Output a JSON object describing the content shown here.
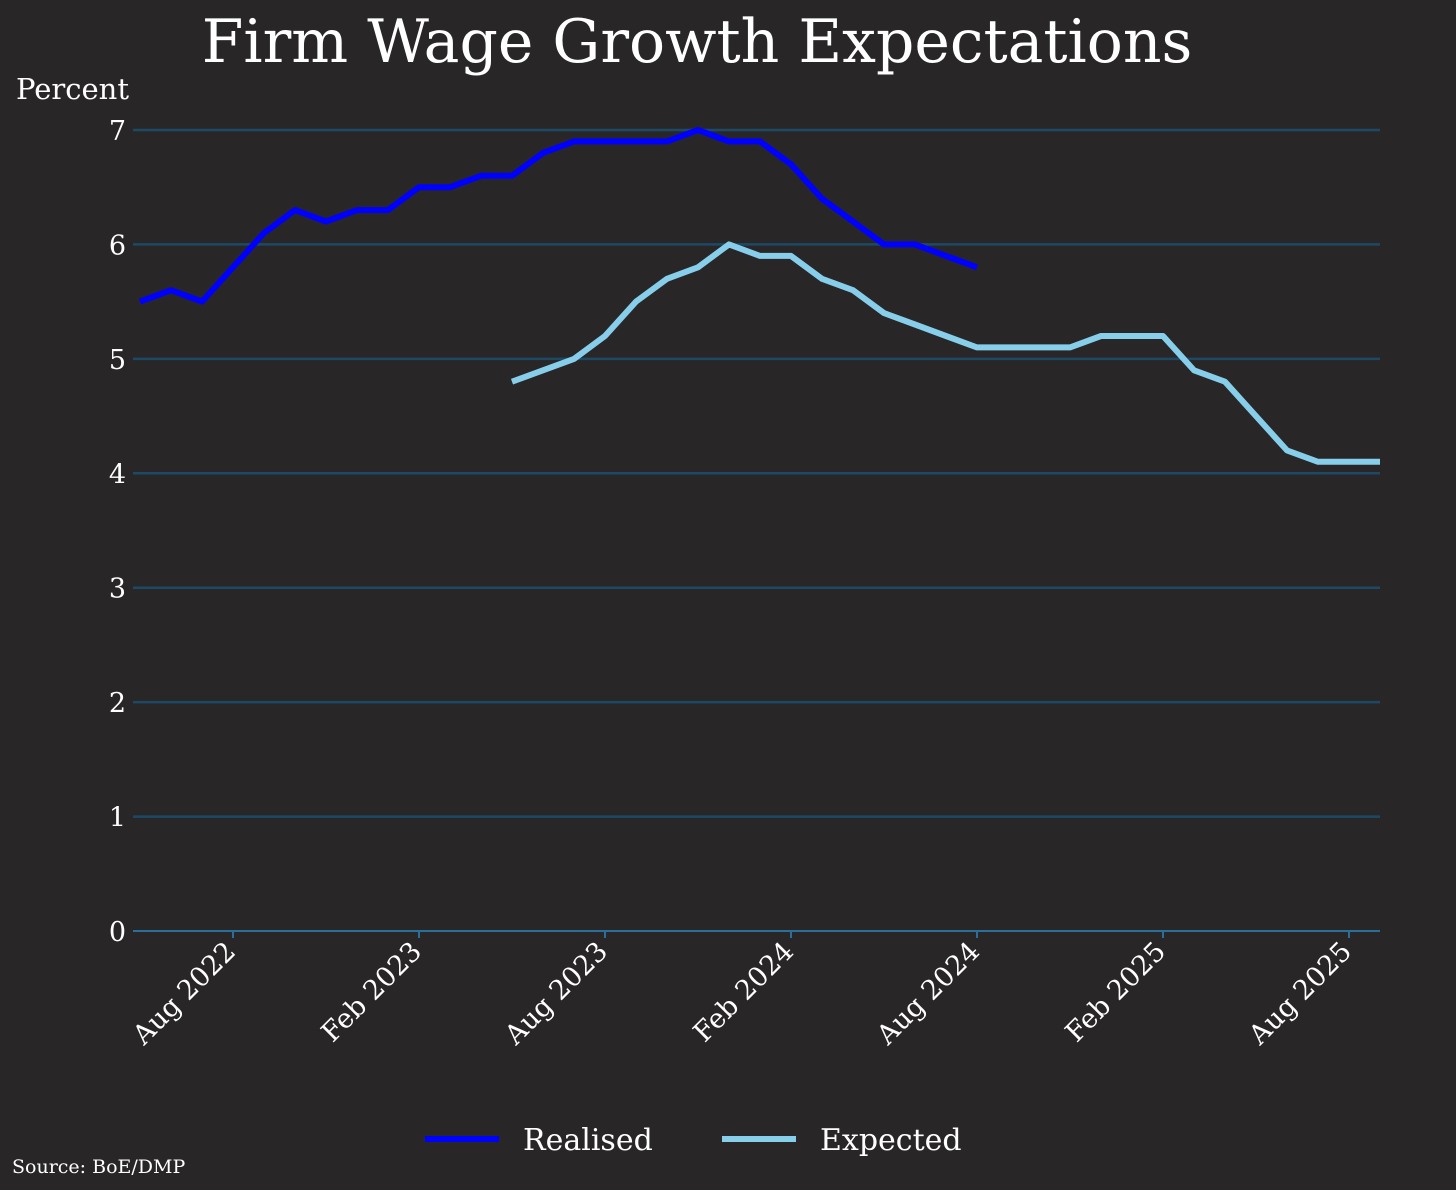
{
  "chart_data": {
    "type": "line",
    "title": "Firm Wage Growth Expectations",
    "ylabel": "Percent",
    "xlabel": "",
    "source": "Source: BoE/DMP",
    "ylim": [
      0,
      7
    ],
    "yticks": [
      0,
      1,
      2,
      3,
      4,
      5,
      6,
      7
    ],
    "xlim": [
      "2022-04",
      "2025-08"
    ],
    "xticks": [
      {
        "date": "2022-07",
        "label": "Aug 2022"
      },
      {
        "date": "2023-01",
        "label": "Feb 2023"
      },
      {
        "date": "2023-07",
        "label": "Aug 2023"
      },
      {
        "date": "2024-01",
        "label": "Feb 2024"
      },
      {
        "date": "2024-07",
        "label": "Aug 2024"
      },
      {
        "date": "2025-01",
        "label": "Feb 2025"
      },
      {
        "date": "2025-07",
        "label": "Aug 2025"
      }
    ],
    "grid": "horizontal",
    "legend_position": "bottom",
    "colors": {
      "background": "#282626",
      "grid": "#1c4a66",
      "axis": "#2a6f99",
      "realised": "#0000ff",
      "expected": "#87ceeb"
    },
    "series": [
      {
        "name": "Realised",
        "color": "#0000ff",
        "x": [
          "2022-04",
          "2022-05",
          "2022-06",
          "2022-07",
          "2022-08",
          "2022-09",
          "2022-10",
          "2022-11",
          "2022-12",
          "2023-01",
          "2023-02",
          "2023-03",
          "2023-04",
          "2023-05",
          "2023-06",
          "2023-07",
          "2023-08",
          "2023-09",
          "2023-10",
          "2023-11",
          "2023-12",
          "2024-01",
          "2024-02",
          "2024-03",
          "2024-04",
          "2024-05",
          "2024-06",
          "2024-07"
        ],
        "y": [
          5.5,
          5.6,
          5.5,
          5.8,
          6.1,
          6.3,
          6.2,
          6.3,
          6.3,
          6.5,
          6.5,
          6.6,
          6.6,
          6.8,
          6.9,
          6.9,
          6.9,
          6.9,
          7.0,
          6.9,
          6.9,
          6.7,
          6.4,
          6.2,
          6.0,
          6.0,
          5.9,
          5.8
        ]
      },
      {
        "name": "Expected",
        "color": "#87ceeb",
        "x": [
          "2023-04",
          "2023-05",
          "2023-06",
          "2023-07",
          "2023-08",
          "2023-09",
          "2023-10",
          "2023-11",
          "2023-12",
          "2024-01",
          "2024-02",
          "2024-03",
          "2024-04",
          "2024-05",
          "2024-06",
          "2024-07",
          "2024-08",
          "2024-09",
          "2024-10",
          "2024-11",
          "2024-12",
          "2025-01",
          "2025-02",
          "2025-03",
          "2025-04",
          "2025-05",
          "2025-06",
          "2025-07",
          "2025-08"
        ],
        "y": [
          4.8,
          4.9,
          5.0,
          5.2,
          5.5,
          5.7,
          5.8,
          6.0,
          5.9,
          5.9,
          5.7,
          5.6,
          5.4,
          5.3,
          5.2,
          5.1,
          5.1,
          5.1,
          5.1,
          5.2,
          5.2,
          5.2,
          4.9,
          4.8,
          4.5,
          4.2,
          4.1,
          4.1,
          4.1
        ]
      }
    ]
  }
}
